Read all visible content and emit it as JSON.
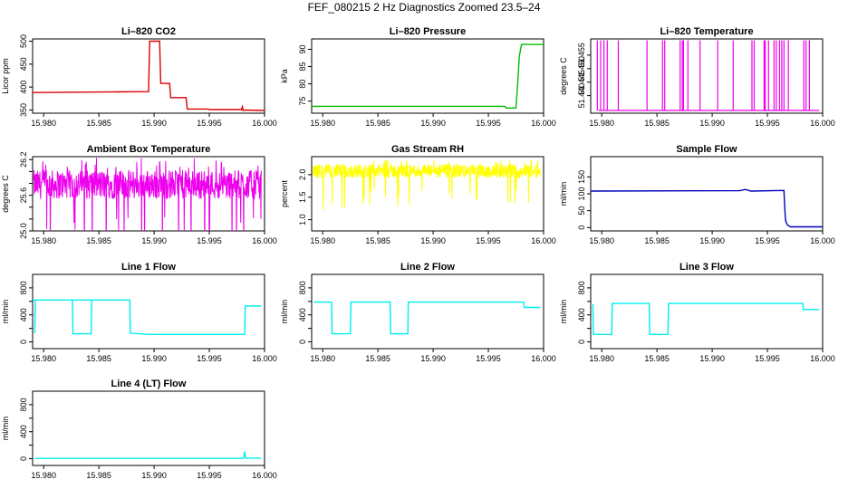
{
  "figure": {
    "title": "FEF_080215  2 Hz Diagnostics Zoomed 23.5–24"
  },
  "chart_data": [
    {
      "type": "line",
      "title": "Li–820 CO2",
      "xlabel": "",
      "ylabel": "Licor ppm",
      "xlim": [
        15.979,
        16.0
      ],
      "ylim": [
        343,
        505
      ],
      "xticks": [
        15.98,
        15.985,
        15.99,
        15.995,
        16.0
      ],
      "xtick_labels": [
        "15.980",
        "15.985",
        "15.990",
        "15.995",
        "16.000"
      ],
      "yticks": [
        350,
        400,
        450,
        500
      ],
      "ytick_labels": [
        "350",
        "400",
        "450",
        "500"
      ],
      "color": "#dd0000",
      "series": [
        {
          "x": [
            15.979,
            15.9895,
            15.9896,
            15.9905,
            15.9906,
            15.9914,
            15.9915,
            15.9929,
            15.993,
            15.9949,
            15.995,
            15.9979,
            15.998,
            15.99805,
            15.9981,
            16.0
          ],
          "y": [
            388,
            390,
            500,
            500,
            408,
            408,
            377,
            377,
            352,
            352,
            351,
            351,
            357,
            349,
            350,
            349
          ]
        }
      ]
    },
    {
      "type": "line",
      "title": "Li–820 Pressure",
      "xlabel": "",
      "ylabel": "kPa",
      "xlim": [
        15.979,
        16.0
      ],
      "ylim": [
        71.5,
        93
      ],
      "xticks": [
        15.98,
        15.985,
        15.99,
        15.995,
        16.0
      ],
      "xtick_labels": [
        "15.980",
        "15.985",
        "15.990",
        "15.995",
        "16.000"
      ],
      "yticks": [
        75,
        80,
        85,
        90
      ],
      "ytick_labels": [
        "75",
        "80",
        "85",
        "90"
      ],
      "color": "#00bb00",
      "series": [
        {
          "x": [
            15.979,
            15.9965,
            15.9966,
            15.9975,
            15.99765,
            15.9978,
            15.998,
            16.0
          ],
          "y": [
            73.5,
            73.5,
            73.0,
            73.0,
            80,
            88,
            91.4,
            91.4
          ]
        }
      ]
    },
    {
      "type": "line",
      "title": "Li–820 Temperature",
      "xlabel": "",
      "ylabel": "degrees C",
      "xlim": [
        15.979,
        16.0
      ],
      "ylim": [
        51.4335,
        51.461
      ],
      "xticks": [
        15.98,
        15.985,
        15.99,
        15.995,
        16.0
      ],
      "xtick_labels": [
        "15.980",
        "15.985",
        "15.990",
        "15.995",
        "16.000"
      ],
      "yticks": [
        51.44,
        51.445,
        51.45,
        51.455
      ],
      "ytick_labels": [
        "51.440",
        "51.445",
        "51.450",
        "51.455"
      ],
      "color": "#ee00ee",
      "baseline": 51.4345,
      "spike_value": 51.4605,
      "spikes": [
        15.9796,
        15.9799,
        15.9802,
        15.9805,
        15.9815,
        15.9841,
        15.9855,
        15.9857,
        15.9871,
        15.9873,
        15.9874,
        15.9878,
        15.9889,
        15.9905,
        15.9919,
        15.9936,
        15.9938,
        15.9947,
        15.9948,
        15.9951,
        15.9956,
        15.9958,
        15.9961,
        15.9963,
        15.9965,
        15.9969,
        15.9983,
        15.9985,
        15.9988
      ]
    },
    {
      "type": "line",
      "title": "Ambient Box Temperature",
      "xlabel": "",
      "ylabel": "degrees C",
      "xlim": [
        15.979,
        16.0
      ],
      "ylim": [
        25.0,
        26.25
      ],
      "xticks": [
        15.98,
        15.985,
        15.99,
        15.995,
        16.0
      ],
      "xtick_labels": [
        "15.980",
        "15.985",
        "15.990",
        "15.995",
        "16.000"
      ],
      "yticks": [
        25.0,
        25.2,
        25.4,
        25.6,
        25.8,
        26.0,
        26.2
      ],
      "ytick_labels": [
        "25.0",
        "",
        "",
        "25.6",
        "",
        "",
        "26.2"
      ],
      "color": "#ee00ee",
      "noise": {
        "center": 25.78,
        "amplitude": 0.35,
        "range": [
          15.9791,
          15.9997
        ]
      }
    },
    {
      "type": "line",
      "title": "Gas Stream RH",
      "xlabel": "",
      "ylabel": "percent",
      "xlim": [
        15.979,
        16.0
      ],
      "ylim": [
        0.75,
        2.4
      ],
      "xticks": [
        15.98,
        15.985,
        15.99,
        15.995,
        16.0
      ],
      "xtick_labels": [
        "15.980",
        "15.985",
        "15.990",
        "15.995",
        "16.000"
      ],
      "yticks": [
        1.0,
        1.5,
        2.0
      ],
      "ytick_labels": [
        "1.0",
        "1.5",
        "2.0"
      ],
      "color": "#ffff00",
      "noise": {
        "center": 2.08,
        "amplitude": 0.22,
        "range": [
          15.9791,
          15.9997
        ]
      }
    },
    {
      "type": "line",
      "title": "Sample Flow",
      "xlabel": "",
      "ylabel": "ml/min",
      "xlim": [
        15.979,
        16.0
      ],
      "ylim": [
        -10,
        210
      ],
      "xticks": [
        15.98,
        15.985,
        15.99,
        15.995,
        16.0
      ],
      "xtick_labels": [
        "15.980",
        "15.985",
        "15.990",
        "15.995",
        "16.000"
      ],
      "yticks": [
        0,
        50,
        100,
        150
      ],
      "ytick_labels": [
        "0",
        "50",
        "100",
        "150"
      ],
      "color": "#0000bb",
      "series": [
        {
          "x": [
            15.979,
            15.9925,
            15.993,
            15.9935,
            15.9965,
            15.9966,
            15.99665,
            15.9968,
            15.9971,
            16.0
          ],
          "y": [
            108,
            109,
            113,
            108,
            110,
            38,
            20,
            8,
            2,
            2
          ]
        }
      ]
    },
    {
      "type": "line",
      "title": "Line 1 Flow",
      "xlabel": "",
      "ylabel": "ml/min",
      "xlim": [
        15.979,
        16.0
      ],
      "ylim": [
        -100,
        1000
      ],
      "xticks": [
        15.98,
        15.985,
        15.99,
        15.995,
        16.0
      ],
      "xtick_labels": [
        "15.980",
        "15.985",
        "15.990",
        "15.995",
        "16.000"
      ],
      "yticks": [
        0,
        200,
        400,
        600,
        800
      ],
      "ytick_labels": [
        "0",
        "",
        "400",
        "",
        "800"
      ],
      "color": "#00eeee",
      "series": [
        {
          "x": [
            15.9792,
            15.97925,
            15.9826,
            15.98265,
            15.9843,
            15.98435,
            15.9878,
            15.97875,
            15.9878,
            15.98785,
            15.9895,
            15.9982,
            15.99825,
            15.9997
          ],
          "y": [
            130,
            620,
            620,
            120,
            120,
            620,
            620,
            620,
            620,
            130,
            110,
            110,
            530,
            530
          ]
        }
      ]
    },
    {
      "type": "line",
      "title": "Line 2 Flow",
      "xlabel": "",
      "ylabel": "ml/min",
      "xlim": [
        15.979,
        16.0
      ],
      "ylim": [
        -100,
        1000
      ],
      "xticks": [
        15.98,
        15.985,
        15.99,
        15.995,
        16.0
      ],
      "xtick_labels": [
        "15.980",
        "15.985",
        "15.990",
        "15.995",
        "16.000"
      ],
      "yticks": [
        0,
        200,
        400,
        600,
        800
      ],
      "ytick_labels": [
        "0",
        "",
        "400",
        "",
        "800"
      ],
      "color": "#00eeee",
      "series": [
        {
          "x": [
            15.9792,
            15.9808,
            15.98085,
            15.9825,
            15.98255,
            15.9861,
            15.98615,
            15.9877,
            15.98775,
            15.9982,
            15.99825,
            15.9997
          ],
          "y": [
            590,
            590,
            120,
            120,
            590,
            590,
            120,
            120,
            590,
            590,
            510,
            510
          ]
        }
      ]
    },
    {
      "type": "line",
      "title": "Line 3 Flow",
      "xlabel": "",
      "ylabel": "ml/min",
      "xlim": [
        15.979,
        16.0
      ],
      "ylim": [
        -100,
        1000
      ],
      "xticks": [
        15.98,
        15.985,
        15.99,
        15.995,
        16.0
      ],
      "xtick_labels": [
        "15.980",
        "15.985",
        "15.990",
        "15.995",
        "16.000"
      ],
      "yticks": [
        0,
        200,
        400,
        600,
        800
      ],
      "ytick_labels": [
        "0",
        "",
        "400",
        "",
        "800"
      ],
      "color": "#00eeee",
      "series": [
        {
          "x": [
            15.9792,
            15.97925,
            15.9809,
            15.98095,
            15.9843,
            15.98435,
            15.986,
            15.98605,
            15.9982,
            15.99825,
            15.9997
          ],
          "y": [
            560,
            110,
            110,
            570,
            570,
            110,
            110,
            570,
            570,
            480,
            480
          ]
        }
      ]
    },
    {
      "type": "line",
      "title": "Line 4 (LT) Flow",
      "xlabel": "",
      "ylabel": "ml/min",
      "xlim": [
        15.979,
        16.0
      ],
      "ylim": [
        -100,
        1000
      ],
      "xticks": [
        15.98,
        15.985,
        15.99,
        15.995,
        16.0
      ],
      "xtick_labels": [
        "15.980",
        "15.985",
        "15.990",
        "15.995",
        "16.000"
      ],
      "yticks": [
        0,
        200,
        400,
        600,
        800
      ],
      "ytick_labels": [
        "0",
        "",
        "400",
        "",
        "800"
      ],
      "color": "#00eeee",
      "series": [
        {
          "x": [
            15.9792,
            15.9981,
            15.99815,
            15.9982,
            15.99825,
            15.9983,
            15.9997
          ],
          "y": [
            5,
            5,
            50,
            110,
            30,
            8,
            8
          ]
        }
      ]
    }
  ]
}
